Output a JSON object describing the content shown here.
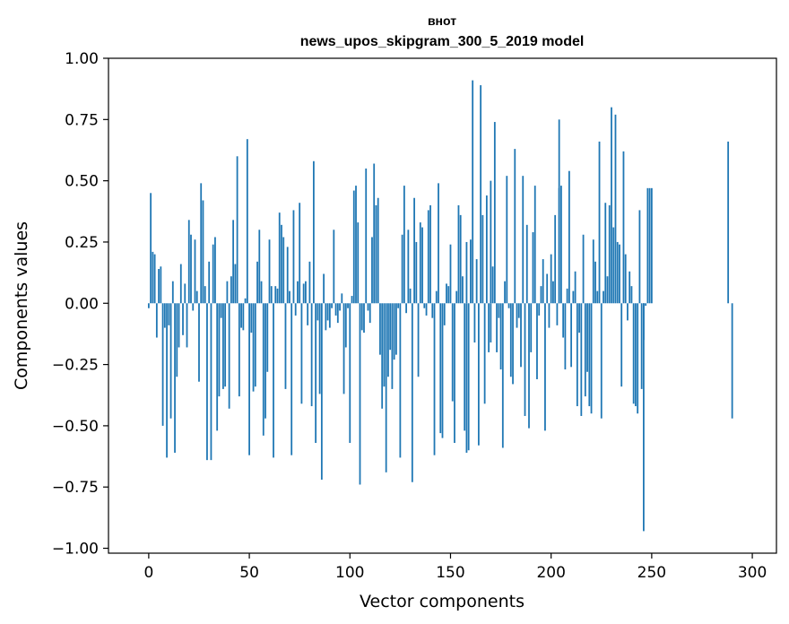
{
  "chart_data": {
    "type": "bar",
    "title": "внот",
    "subtitle": "news_upos_skipgram_300_5_2019 model",
    "xlabel": "Vector components",
    "ylabel": "Components values",
    "xlim": [
      -20,
      312
    ],
    "ylim": [
      -1.02,
      1.0
    ],
    "xticks": [
      0,
      50,
      100,
      150,
      200,
      250,
      300
    ],
    "xtick_labels": [
      "0",
      "50",
      "100",
      "150",
      "200",
      "250",
      "300"
    ],
    "yticks": [
      1.0,
      0.75,
      0.5,
      0.25,
      0.0,
      -0.25,
      -0.5,
      -0.75,
      -1.0
    ],
    "ytick_labels": [
      "1.00",
      "0.75",
      "0.50",
      "0.25",
      "0.00",
      "−0.25",
      "−0.50",
      "−0.75",
      "−1.00"
    ],
    "bar_color": "#1f77b4",
    "values": [
      -0.02,
      0.45,
      0.21,
      0.2,
      -0.14,
      0.14,
      0.15,
      -0.5,
      -0.1,
      -0.63,
      -0.09,
      -0.47,
      0.09,
      -0.61,
      -0.3,
      -0.18,
      0.16,
      -0.13,
      0.08,
      -0.18,
      0.34,
      0.28,
      -0.03,
      0.26,
      0.05,
      -0.32,
      0.49,
      0.42,
      0.07,
      -0.64,
      0.17,
      -0.64,
      0.24,
      0.27,
      -0.52,
      -0.38,
      -0.06,
      -0.35,
      -0.34,
      0.09,
      -0.43,
      0.11,
      0.34,
      0.16,
      0.6,
      -0.38,
      -0.1,
      -0.11,
      0.02,
      0.67,
      -0.62,
      -0.12,
      -0.36,
      -0.34,
      0.17,
      0.3,
      0.09,
      -0.54,
      -0.47,
      -0.28,
      0.26,
      0.07,
      -0.63,
      0.07,
      0.06,
      0.37,
      0.32,
      0.27,
      -0.35,
      0.23,
      0.05,
      -0.62,
      0.38,
      -0.05,
      0.09,
      0.41,
      -0.41,
      0.08,
      0.09,
      -0.09,
      0.17,
      -0.42,
      0.58,
      -0.57,
      -0.07,
      -0.37,
      -0.72,
      0.12,
      -0.11,
      -0.07,
      -0.1,
      -0.02,
      0.3,
      -0.05,
      -0.08,
      -0.03,
      0.04,
      -0.37,
      -0.18,
      -0.02,
      -0.57,
      0.03,
      0.46,
      0.48,
      0.33,
      -0.74,
      -0.11,
      -0.12,
      0.55,
      -0.03,
      -0.08,
      0.27,
      0.57,
      0.4,
      0.43,
      -0.21,
      -0.43,
      -0.34,
      -0.69,
      -0.3,
      -0.19,
      -0.35,
      -0.23,
      -0.21,
      -0.02,
      -0.63,
      0.28,
      0.48,
      -0.04,
      0.3,
      0.06,
      -0.73,
      0.43,
      0.25,
      -0.3,
      0.33,
      0.31,
      -0.02,
      -0.05,
      0.38,
      0.4,
      -0.06,
      -0.62,
      0.05,
      0.49,
      -0.53,
      -0.55,
      -0.09,
      0.08,
      0.07,
      0.24,
      -0.4,
      -0.57,
      0.05,
      0.4,
      0.36,
      0.11,
      -0.52,
      0.25,
      -0.6,
      0.26,
      0.91,
      -0.16,
      0.18,
      -0.58,
      0.89,
      0.36,
      -0.41,
      0.44,
      -0.2,
      -0.16,
      0.15,
      0.74,
      -0.2,
      -0.06,
      -0.27,
      -0.59,
      0.09,
      0.52,
      -0.02,
      -0.3,
      -0.33,
      0.63,
      -0.1,
      -0.06,
      -0.26,
      0.52,
      -0.46,
      0.32,
      -0.51,
      -0.2,
      0.29,
      0.48,
      -0.31,
      -0.05,
      0.07,
      0.18,
      -0.52,
      0.12,
      -0.1,
      0.2,
      0.09,
      0.36,
      -0.09,
      0.47,
      0.48,
      -0.14,
      -0.27,
      0.06,
      0.54,
      -0.26,
      0.05,
      0.13,
      -0.42,
      -0.12,
      -0.46,
      0.28,
      -0.38,
      -0.28,
      -0.42,
      -0.45,
      0.26,
      0.17,
      0.05,
      0.66,
      -0.47,
      0.05,
      0.41,
      0.11,
      0.4,
      0.8,
      0.31,
      0.77,
      0.25,
      0.24,
      -0.34,
      0.62,
      0.2,
      -0.07,
      0.13,
      0.07,
      -0.41,
      -0.42,
      -0.45,
      0.38,
      -0.35,
      -0.15,
      -0.01,
      0.47,
      0.47,
      0.47
    ],
    "sparse_spikes": [
      {
        "index": 158,
        "value": -0.61
      },
      {
        "index": 170,
        "value": 0.5
      },
      {
        "index": 204,
        "value": 0.75
      },
      {
        "index": 246,
        "value": -0.93
      },
      {
        "index": 290,
        "value": -0.47
      },
      {
        "index": 288,
        "value": 0.66
      }
    ]
  }
}
